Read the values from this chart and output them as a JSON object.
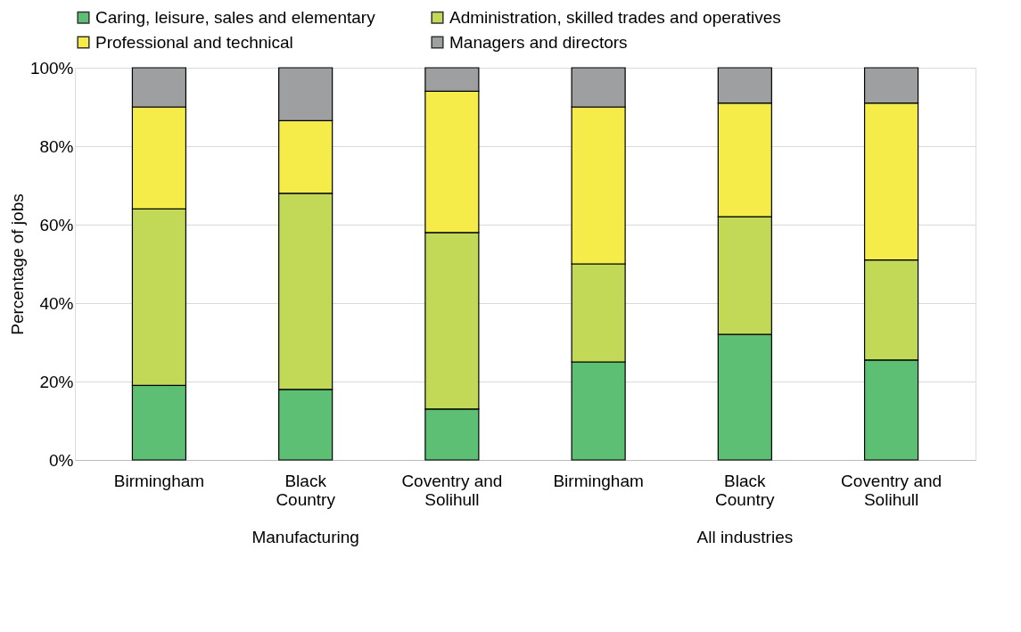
{
  "chart_data": {
    "type": "bar",
    "stacked": true,
    "ylabel": "Percentage of jobs",
    "categories": [
      "Birmingham",
      "Black Country",
      "Coventry and Solihull",
      "Birmingham",
      "Black Country",
      "Coventry and Solihull"
    ],
    "series": [
      {
        "name": "Caring, leisure, sales and elementary",
        "color": "#5dbf74",
        "values": [
          19,
          18,
          13,
          25,
          32,
          25.5
        ]
      },
      {
        "name": "Administration, skilled trades and operatives",
        "color": "#c2d957",
        "values": [
          45,
          50,
          45,
          25,
          30,
          25.5
        ]
      },
      {
        "name": "Professional and technical",
        "color": "#f5ec4a",
        "values": [
          26,
          18.5,
          36,
          40,
          29,
          40
        ]
      },
      {
        "name": "Managers and directors",
        "color": "#9d9fa1",
        "values": [
          10,
          13.5,
          6,
          10,
          9,
          9
        ]
      }
    ],
    "ylim": [
      0,
      100
    ],
    "yticks": [
      {
        "value": 0,
        "label": "0%"
      },
      {
        "value": 20,
        "label": "20%"
      },
      {
        "value": 40,
        "label": "40%"
      },
      {
        "value": 60,
        "label": "60%"
      },
      {
        "value": 80,
        "label": "80%"
      },
      {
        "value": 100,
        "label": "100%"
      }
    ],
    "grid": "y",
    "legend": "top",
    "annotations": [
      "Manufacturing",
      "All industries"
    ]
  }
}
